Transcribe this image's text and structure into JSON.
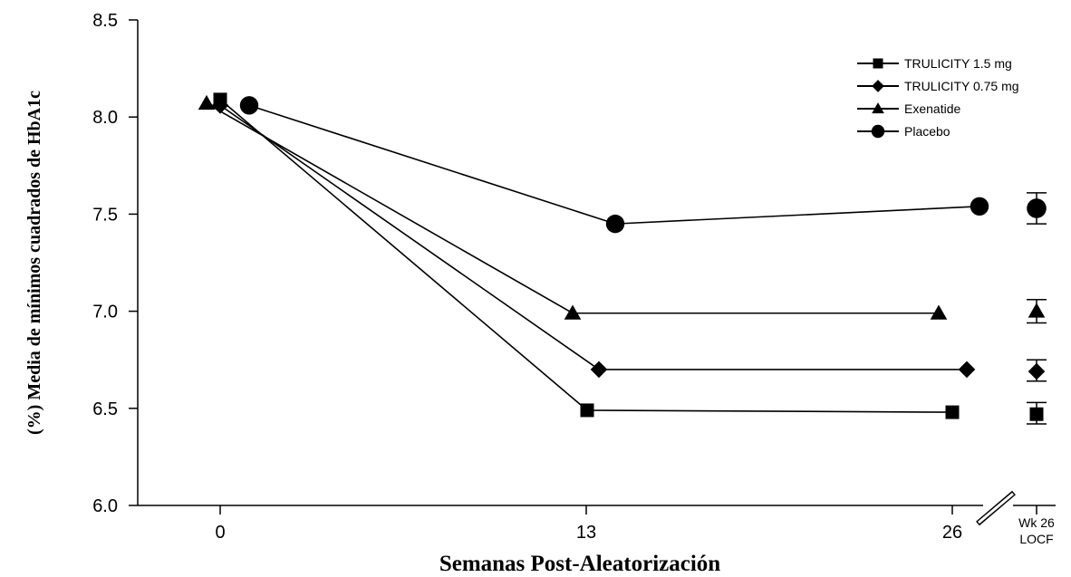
{
  "chart_data": {
    "type": "line",
    "xlabel": "Semanas Post-Aleatorización",
    "ylabel": "(%) Media de mínimos cuadrados de HbA1c",
    "ylim": [
      6.0,
      8.5
    ],
    "y_ticks": [
      "6.0",
      "6.5",
      "7.0",
      "7.5",
      "8.0",
      "8.5"
    ],
    "x_ticks": [
      "0",
      "13",
      "26"
    ],
    "extra_x_label_line1": "Wk 26",
    "extra_x_label_line2": "LOCF",
    "axis_break": true,
    "legend_position": "top-right",
    "grid": false,
    "series": [
      {
        "name": "TRULICITY 1.5 mg",
        "marker": "square",
        "x": [
          0,
          13,
          26
        ],
        "values": [
          8.09,
          6.49,
          6.48
        ],
        "locf": {
          "value": 6.47,
          "err_low": 6.42,
          "err_high": 6.53
        }
      },
      {
        "name": "TRULICITY 0.75 mg",
        "marker": "diamond",
        "x": [
          0,
          13,
          26
        ],
        "values": [
          8.06,
          6.7,
          6.7
        ],
        "locf": {
          "value": 6.69,
          "err_low": 6.64,
          "err_high": 6.75
        }
      },
      {
        "name": "Exenatide",
        "marker": "triangle",
        "x": [
          0,
          13,
          26
        ],
        "values": [
          8.07,
          6.99,
          6.99
        ],
        "locf": {
          "value": 7.0,
          "err_low": 6.94,
          "err_high": 7.06
        }
      },
      {
        "name": "Placebo",
        "marker": "circle",
        "x": [
          0,
          13,
          26
        ],
        "values": [
          8.06,
          7.45,
          7.54
        ],
        "locf": {
          "value": 7.53,
          "err_low": 7.45,
          "err_high": 7.61
        }
      }
    ]
  }
}
